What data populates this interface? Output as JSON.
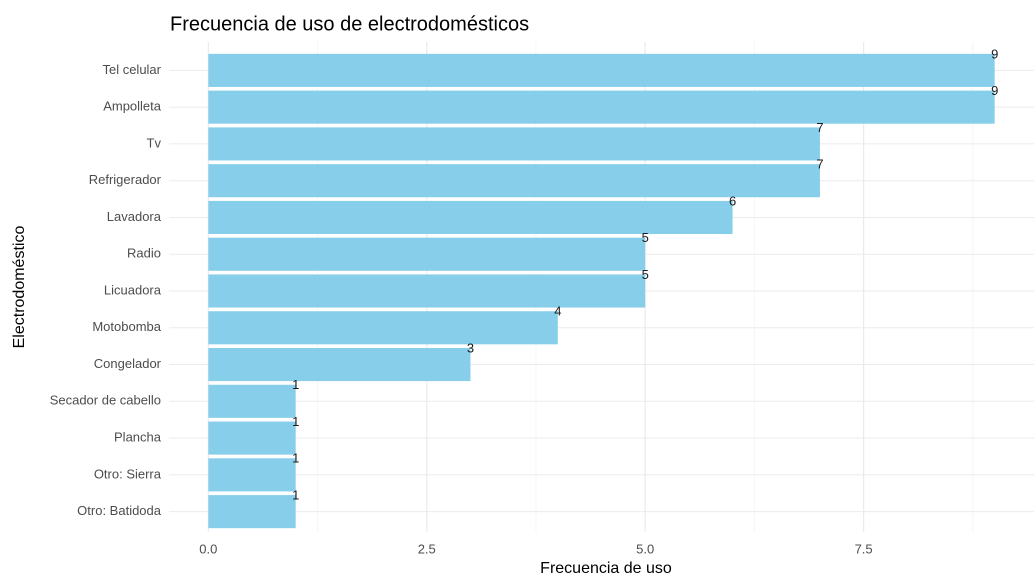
{
  "chart_data": {
    "type": "barh",
    "title": "Frecuencia de uso de electrodomésticos",
    "x_label": "Frecuencia de uso",
    "y_label": "Electrodoméstico",
    "categories": [
      "Tel celular",
      "Ampolleta",
      "Tv",
      "Refrigerador",
      "Lavadora",
      "Radio",
      "Licuadora",
      "Motobomba",
      "Congelador",
      "Secador de cabello",
      "Plancha",
      "Otro: Sierra",
      "Otro: Batidoda"
    ],
    "values": [
      9,
      9,
      7,
      7,
      6,
      5,
      5,
      4,
      3,
      1,
      1,
      1,
      1
    ],
    "color": "#87ceeb",
    "xlim": [
      -0.45,
      9.45
    ],
    "xticks": [
      {
        "value": 0,
        "label": "0.0"
      },
      2.5,
      {
        "value": 5,
        "label": "5.0"
      },
      7.5
    ],
    "x_minor_grid": [
      1.25,
      3.75,
      6.25,
      8.75
    ],
    "grid": true
  }
}
